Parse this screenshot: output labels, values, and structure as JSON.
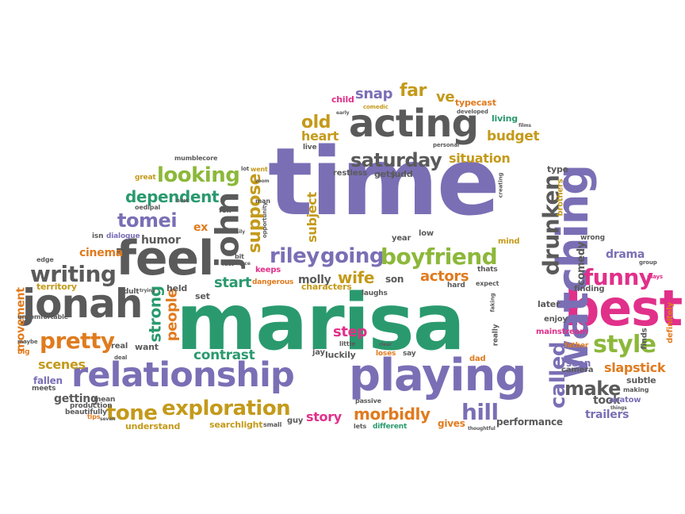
{
  "colors": {
    "purple": "#7a6fb5",
    "green": "#2a9a6e",
    "orange": "#e07b1f",
    "lime": "#8cb83a",
    "gray": "#5a5a5a",
    "pink": "#e1308a",
    "gold": "#c49a1a",
    "red": "#d9413a"
  },
  "words": [
    "marisa",
    "time",
    "relationship",
    "playing",
    "best",
    "acting",
    "feel",
    "jonah",
    "watching",
    "saturday",
    "budget",
    "style",
    "looking",
    "dependent",
    "tomei",
    "john",
    "suppose",
    "riley",
    "going",
    "boyfriend",
    "drunken",
    "called",
    "funny",
    "writing",
    "pretty",
    "cinema",
    "hill",
    "make",
    "exploration",
    "tone",
    "snap",
    "far",
    "ve",
    "old",
    "heart",
    "situation",
    "actors",
    "wife",
    "start",
    "contrast",
    "strong",
    "people",
    "step",
    "morbidly",
    "story",
    "molly",
    "subject",
    "humor",
    "ex",
    "slapstick",
    "drama",
    "comedy",
    "movement",
    "scenes",
    "getting",
    "took",
    "seen",
    "trailers",
    "performance",
    "gives",
    "different",
    "searchlight",
    "understand",
    "fallen",
    "territory",
    "typecast",
    "child",
    "living",
    "type",
    "brothers",
    "finding",
    "later",
    "enjoy",
    "mainstream",
    "camera",
    "subtle",
    "apatow",
    "finds",
    "definitely",
    "wrong",
    "son",
    "characters",
    "dangerous",
    "keeps",
    "held",
    "set",
    "adult",
    "want",
    "real",
    "luckily",
    "jay",
    "loses",
    "say",
    "dad",
    "really",
    "little",
    "mean",
    "production",
    "beautifully",
    "small",
    "guy",
    "lets",
    "gets",
    "judd",
    "restless",
    "live",
    "great",
    "oedipal",
    "dialogue",
    "isn",
    "edge",
    "uncomfortable",
    "big",
    "maybe",
    "meets",
    "fox",
    "opportunity",
    "man",
    "bit",
    "went",
    "year",
    "low",
    "mind",
    "hard",
    "expect",
    "thats",
    "passive",
    "laughs",
    "creating",
    "personal",
    "developed",
    "comedic",
    "early",
    "mumblecore",
    "faking",
    "group",
    "plays",
    "father",
    "making",
    "things",
    "seven",
    "tips",
    "fact",
    "deal",
    "trying",
    "clear",
    "thoughtful",
    "face",
    "lot",
    "new",
    "easily",
    "zoom",
    "films"
  ]
}
